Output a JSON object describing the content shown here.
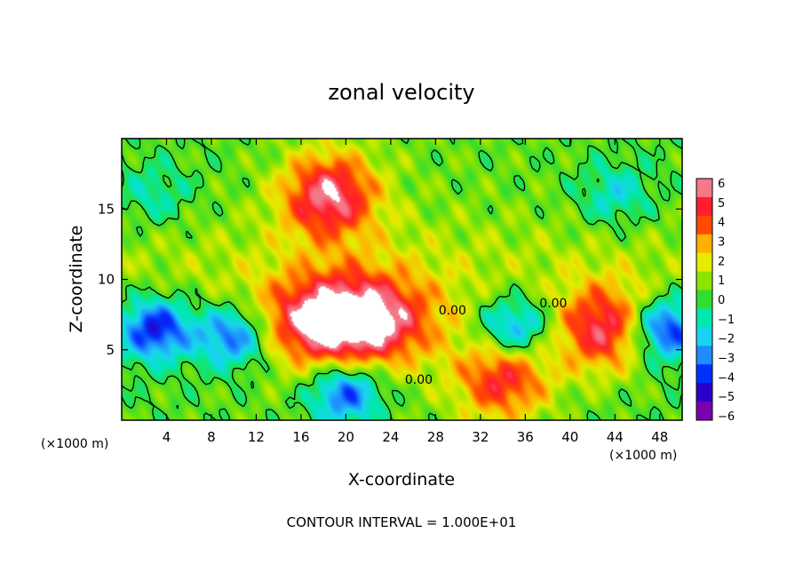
{
  "chart_data": {
    "type": "heatmap",
    "title": "zonal velocity",
    "xlabel": "X-coordinate",
    "ylabel": "Z-coordinate",
    "x_unit": "(×1000 m)",
    "y_unit": "(×1000 m)",
    "footer": "CONTOUR INTERVAL = 1.000E+01",
    "xlim": [
      0,
      50
    ],
    "ylim": [
      0,
      20
    ],
    "x_ticks": [
      4,
      8,
      12,
      16,
      20,
      24,
      28,
      32,
      36,
      40,
      44,
      48
    ],
    "y_ticks": [
      5,
      10,
      15
    ],
    "colorbar": {
      "min": -6,
      "max": 6,
      "tick_values": [
        6,
        5,
        4,
        3,
        2,
        1,
        0,
        -1,
        -2,
        -3,
        -4,
        -5,
        -6
      ],
      "tick_labels": [
        "6",
        "5",
        "4",
        "3",
        "2",
        "1",
        "0",
        "−1",
        "−2",
        "−3",
        "−4",
        "−5",
        "−6"
      ],
      "colors": [
        "#7a00b0",
        "#2a00c8",
        "#0030ff",
        "#1f8cff",
        "#19d4f0",
        "#00e8b0",
        "#30dd30",
        "#8ce400",
        "#e4ec00",
        "#ffb000",
        "#ff4a00",
        "#ff1d2e",
        "#f47888"
      ]
    },
    "contour_labels": [
      {
        "text": "0.00",
        "x": 29.5,
        "z": 7.5
      },
      {
        "text": "0.00",
        "x": 38.5,
        "z": 8.0
      },
      {
        "text": "0.00",
        "x": 26.5,
        "z": 2.6
      }
    ],
    "features": [
      {
        "name": "positive jet core",
        "x": 18.5,
        "z": 16,
        "value": 5.5
      },
      {
        "name": "saturated positive region",
        "x": 20,
        "z": 7,
        "value": 8
      },
      {
        "name": "negative vortex",
        "x": 10,
        "z": 6,
        "value": -4.5
      },
      {
        "name": "negative vortex",
        "x": 3,
        "z": 6.5,
        "value": -5
      },
      {
        "name": "negative vortex",
        "x": 35,
        "z": 6.5,
        "value": -4
      },
      {
        "name": "negative vortex",
        "x": 48.5,
        "z": 6.5,
        "value": -5
      },
      {
        "name": "positive cell",
        "x": 43,
        "z": 6.5,
        "value": 5
      },
      {
        "name": "positive cell",
        "x": 34,
        "z": 3,
        "value": 4.5
      },
      {
        "name": "weak negative region",
        "x": 44,
        "z": 16,
        "value": -2
      },
      {
        "name": "weak negative region",
        "x": 3,
        "z": 16,
        "value": -1.5
      },
      {
        "name": "negative lower layer",
        "x": 20,
        "z": 2,
        "value": -4.5
      }
    ]
  }
}
